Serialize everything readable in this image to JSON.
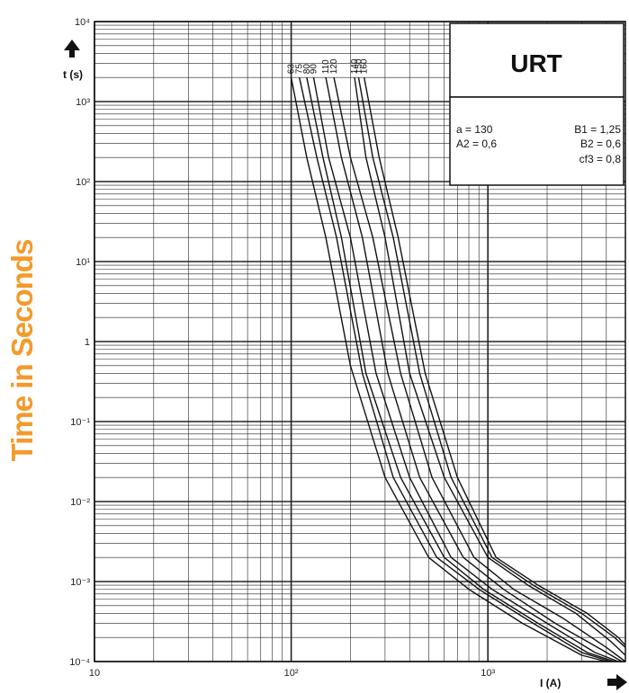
{
  "y_axis_title": "Time in Seconds",
  "chart_data": {
    "type": "line",
    "title": "URT",
    "xlabel": "I (A)",
    "ylabel": "t (s)",
    "x_scale": "log",
    "y_scale": "log",
    "xlim": [
      10,
      5000
    ],
    "ylim": [
      0.0001,
      10000
    ],
    "grid": true,
    "x_ticks": [
      {
        "value": 10,
        "label": "10"
      },
      {
        "value": 100,
        "label": "10²"
      },
      {
        "value": 1000,
        "label": "10³"
      }
    ],
    "y_ticks": [
      {
        "value": 10000,
        "label": "10⁴"
      },
      {
        "value": 1000,
        "label": "10³"
      },
      {
        "value": 100,
        "label": "10²"
      },
      {
        "value": 10,
        "label": "10¹"
      },
      {
        "value": 1,
        "label": "1"
      },
      {
        "value": 0.1,
        "label": "10⁻¹"
      },
      {
        "value": 0.01,
        "label": "10⁻²"
      },
      {
        "value": 0.001,
        "label": "10⁻³"
      },
      {
        "value": 0.0001,
        "label": "10⁻⁴"
      }
    ],
    "parameters": [
      {
        "label": "a = 130"
      },
      {
        "label": "B1 = 1,25"
      },
      {
        "label": "A2 = 0,6"
      },
      {
        "label": "B2 = 0,6"
      },
      {
        "label": "cf3 = 0,8"
      }
    ],
    "series": [
      {
        "name": "63",
        "x": [
          100,
          120,
          150,
          200,
          300,
          500,
          800,
          1500,
          3000,
          4000
        ],
        "y": [
          2000,
          200,
          20,
          0.5,
          0.02,
          0.002,
          0.0008,
          0.0003,
          0.00012,
          0.0001
        ]
      },
      {
        "name": "75",
        "x": [
          110,
          135,
          170,
          230,
          330,
          550,
          900,
          1700,
          3000,
          4200
        ],
        "y": [
          2000,
          200,
          20,
          0.4,
          0.02,
          0.002,
          0.0008,
          0.0003,
          0.00013,
          0.0001
        ]
      },
      {
        "name": "80",
        "x": [
          120,
          145,
          180,
          240,
          360,
          600,
          950,
          1800,
          3200,
          4400
        ],
        "y": [
          2000,
          200,
          20,
          0.4,
          0.02,
          0.002,
          0.0008,
          0.0003,
          0.00013,
          0.0001
        ]
      },
      {
        "name": "90",
        "x": [
          130,
          155,
          200,
          270,
          400,
          650,
          1050,
          2000,
          3500,
          4600
        ],
        "y": [
          2000,
          200,
          20,
          0.4,
          0.02,
          0.002,
          0.0008,
          0.0003,
          0.00013,
          0.0001
        ]
      },
      {
        "name": "110",
        "x": [
          150,
          180,
          230,
          310,
          450,
          750,
          1200,
          2200,
          3800,
          4800
        ],
        "y": [
          2000,
          200,
          20,
          0.4,
          0.02,
          0.002,
          0.0008,
          0.0003,
          0.00014,
          0.0001
        ]
      },
      {
        "name": "120",
        "x": [
          165,
          200,
          260,
          360,
          520,
          850,
          1350,
          2400,
          4000,
          5000
        ],
        "y": [
          2000,
          200,
          20,
          0.4,
          0.02,
          0.002,
          0.0008,
          0.00035,
          0.00015,
          0.0001
        ]
      },
      {
        "name": "140",
        "x": [
          210,
          240,
          300,
          400,
          600,
          1000,
          1600,
          2800,
          4200,
          5000
        ],
        "y": [
          2000,
          200,
          20,
          0.4,
          0.02,
          0.002,
          0.0009,
          0.0004,
          0.00018,
          0.00012
        ]
      },
      {
        "name": "150",
        "x": [
          220,
          260,
          330,
          450,
          650,
          1050,
          1700,
          3000,
          4400,
          5000
        ],
        "y": [
          2000,
          200,
          20,
          0.4,
          0.02,
          0.002,
          0.0009,
          0.0004,
          0.0002,
          0.00015
        ]
      },
      {
        "name": "160",
        "x": [
          235,
          280,
          350,
          480,
          700,
          1100,
          1800,
          3200,
          4600,
          5000
        ],
        "y": [
          2000,
          200,
          20,
          0.4,
          0.02,
          0.002,
          0.0009,
          0.0004,
          0.0002,
          0.00016
        ]
      }
    ]
  }
}
